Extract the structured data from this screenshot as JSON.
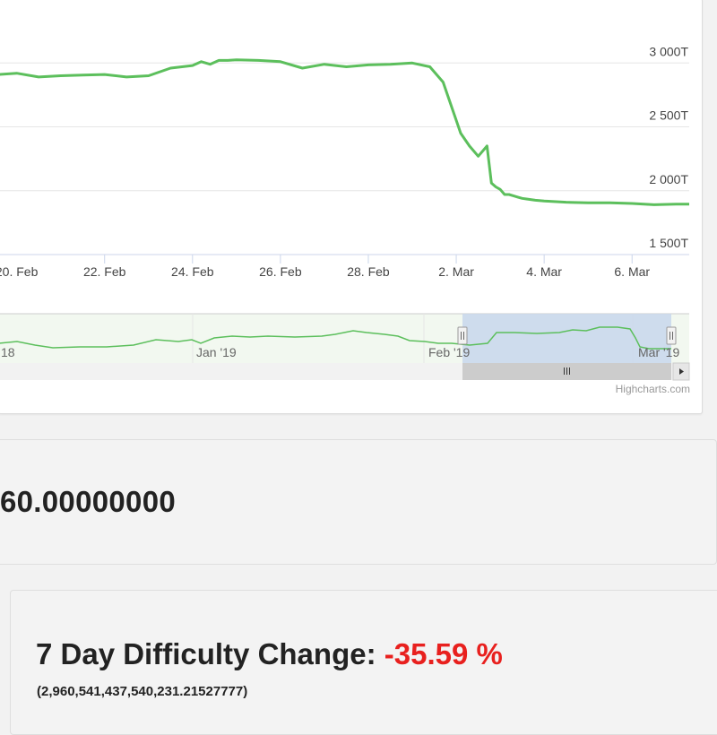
{
  "chart_data": {
    "type": "line",
    "y_axis": {
      "ticks": [
        "3 000T",
        "2 500T",
        "2 000T",
        "1 500T"
      ],
      "tick_values": [
        3000,
        2500,
        2000,
        1500
      ],
      "unit": "T",
      "ylim": [
        1500,
        3500
      ]
    },
    "x_axis": {
      "ticks": [
        "22. Feb",
        "24. Feb",
        "26. Feb",
        "28. Feb",
        "2. Mar",
        "4. Mar",
        "6. Mar"
      ],
      "xlim": [
        19.6,
        35.3
      ]
    },
    "series": [
      {
        "color": "#5cbf5c",
        "x": [
          19.6,
          20.0,
          20.5,
          21.0,
          21.5,
          22.0,
          22.5,
          23.0,
          23.5,
          24.0,
          24.2,
          24.4,
          24.6,
          24.8,
          25.0,
          25.5,
          26.0,
          26.5,
          27.0,
          27.5,
          28.0,
          28.5,
          29.0,
          29.4,
          29.7,
          29.9,
          30.1,
          30.3,
          30.5,
          30.7,
          30.8,
          30.9,
          31.0,
          31.1,
          31.2,
          31.3,
          31.4,
          31.5,
          31.6,
          31.8,
          32.0,
          32.5,
          33.0,
          33.5,
          34.0,
          34.5,
          35.0,
          35.3
        ],
        "y": [
          2910,
          2920,
          2890,
          2900,
          2905,
          2910,
          2890,
          2900,
          2960,
          2980,
          3010,
          2990,
          3020,
          3020,
          3025,
          3020,
          3010,
          2960,
          2990,
          2970,
          2985,
          2990,
          3000,
          2970,
          2850,
          2650,
          2450,
          2350,
          2270,
          2350,
          2060,
          2030,
          2010,
          1970,
          1970,
          1960,
          1950,
          1940,
          1935,
          1925,
          1920,
          1910,
          1905,
          1905,
          1900,
          1890,
          1895,
          1895
        ]
      }
    ],
    "navigator": {
      "labels": [
        "18",
        "Jan '19",
        "Feb '19",
        "Mar '19"
      ]
    },
    "credits": "Highcharts.com"
  },
  "block_reward": {
    "value": "60.00000000"
  },
  "difficulty_change": {
    "label": "7 Day Difficulty Change:",
    "value": "-35.59 %",
    "detail": "(2,960,541,437,540,231.21527777)"
  }
}
